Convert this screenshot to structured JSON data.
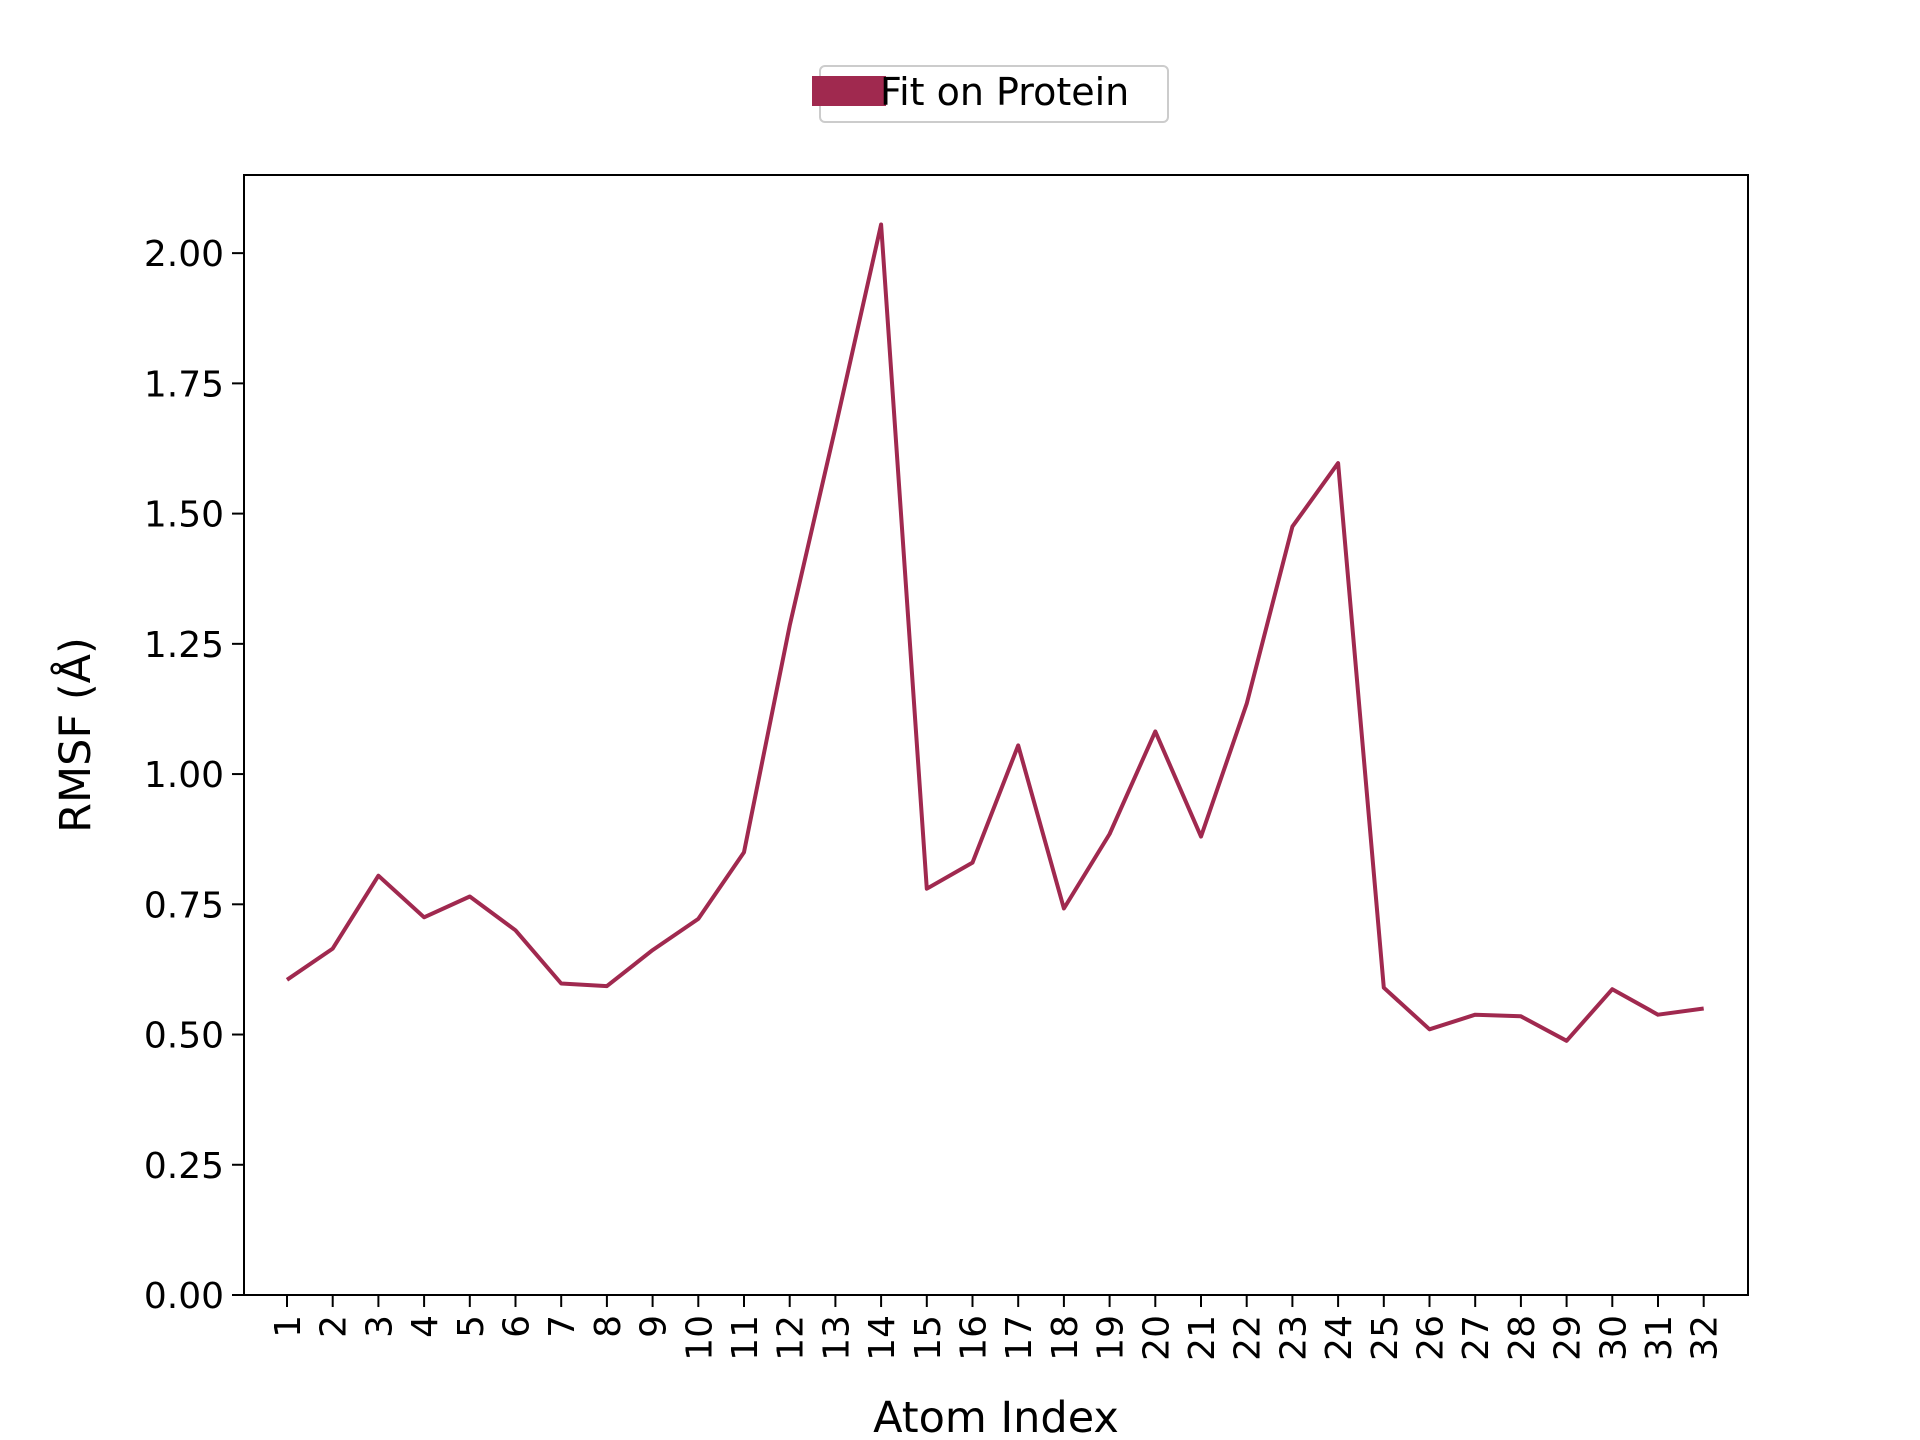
{
  "chart_data": {
    "type": "line",
    "xlabel": "Atom Index",
    "ylabel": "RMSF (Å)",
    "ylim": [
      0.0,
      2.15
    ],
    "yticks": [
      "0.00",
      "0.25",
      "0.50",
      "0.75",
      "1.00",
      "1.25",
      "1.50",
      "1.75",
      "2.00"
    ],
    "ytick_values": [
      0.0,
      0.25,
      0.5,
      0.75,
      1.0,
      1.25,
      1.5,
      1.75,
      2.0
    ],
    "x": [
      1,
      2,
      3,
      4,
      5,
      6,
      7,
      8,
      9,
      10,
      11,
      12,
      13,
      14,
      15,
      16,
      17,
      18,
      19,
      20,
      21,
      22,
      23,
      24,
      25,
      26,
      27,
      28,
      29,
      30,
      31,
      32
    ],
    "xticks": [
      "1",
      "2",
      "3",
      "4",
      "5",
      "6",
      "7",
      "8",
      "9",
      "10",
      "11",
      "12",
      "13",
      "14",
      "15",
      "16",
      "17",
      "18",
      "19",
      "20",
      "21",
      "22",
      "23",
      "24",
      "25",
      "26",
      "27",
      "28",
      "29",
      "30",
      "31",
      "32"
    ],
    "grid": false,
    "legend_position": "top-center",
    "series": [
      {
        "name": "Fit on Protein",
        "color": "#a0294f",
        "values": [
          0.605,
          0.665,
          0.805,
          0.725,
          0.765,
          0.7,
          0.598,
          0.593,
          0.662,
          0.722,
          0.85,
          1.285,
          1.665,
          2.055,
          0.78,
          0.83,
          1.055,
          0.742,
          0.885,
          1.082,
          0.88,
          1.135,
          1.475,
          1.597,
          0.59,
          0.51,
          0.538,
          0.535,
          0.488,
          0.587,
          0.538,
          0.55
        ]
      }
    ]
  }
}
